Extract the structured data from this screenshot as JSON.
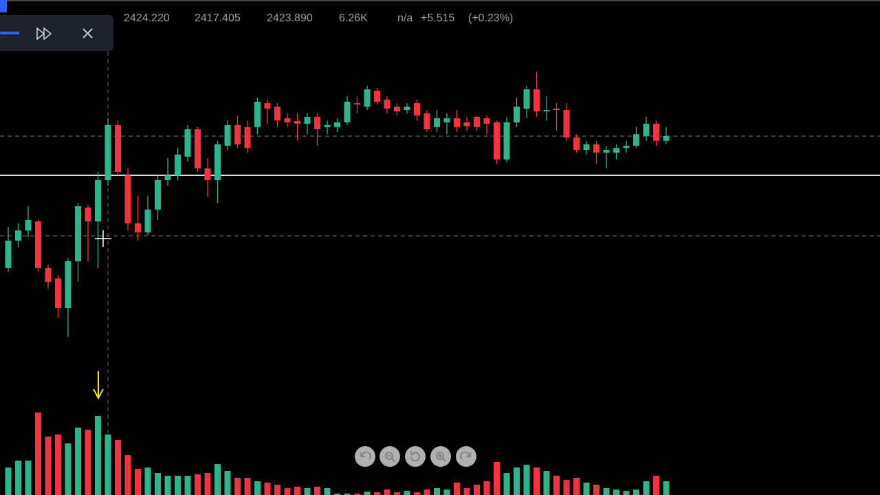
{
  "header": {
    "values": [
      "2424.220",
      "2417.405",
      "2423.890"
    ],
    "volume": "6.26K",
    "extra": "n/a",
    "change": "+5.515",
    "change_pct": "(+0.23%)"
  },
  "chart_data": {
    "type": "candlestick",
    "ylim": [
      2395,
      2445
    ],
    "volume_lim": [
      0,
      130
    ],
    "up_color": "#2bb58c",
    "down_color": "#f0333f",
    "open": [
      2408.75,
      2413.75,
      2415.6,
      2417.25,
      2408.75,
      2406.9,
      2401.5,
      2410,
      2419.75,
      2417.25,
      2424.75,
      2434.75,
      2425.6,
      2416.9,
      2415.25,
      2419.4,
      2424.75,
      2425.6,
      2429,
      2434,
      2426.9,
      2424.75,
      2431,
      2434.75,
      2434.4,
      2434.4,
      2438.75,
      2438.1,
      2436,
      2435.5,
      2435,
      2436.25,
      2434.4,
      2434.4,
      2435.25,
      2438.75,
      2438.1,
      2441,
      2439.4,
      2438.1,
      2437.5,
      2438.75,
      2436.9,
      2434.4,
      2435.25,
      2436,
      2435.25,
      2436.25,
      2436,
      2435.25,
      2428.5,
      2435.25,
      2437.75,
      2441.25,
      2437.25,
      2437.75,
      2437.5,
      2432.5,
      2430.25,
      2431.25,
      2429.75,
      2429.75,
      2430.6,
      2431,
      2432.75,
      2435,
      2431.9
    ],
    "high": [
      2416.25,
      2416.9,
      2420,
      2417.5,
      2409.4,
      2407.5,
      2410.6,
      2420.6,
      2420.25,
      2426.25,
      2436,
      2435.6,
      2426.9,
      2421.9,
      2421.9,
      2425.6,
      2428.75,
      2430.6,
      2434.75,
      2434.4,
      2428.75,
      2431.9,
      2435.6,
      2436.5,
      2435.6,
      2439.75,
      2439.4,
      2438.75,
      2436.9,
      2436.9,
      2436.9,
      2436.9,
      2435.6,
      2436,
      2440,
      2440,
      2441.9,
      2441.5,
      2440,
      2438.75,
      2438.75,
      2439.4,
      2437.5,
      2437.5,
      2436.9,
      2437.5,
      2436.25,
      2436.5,
      2436.5,
      2435.6,
      2436.25,
      2439.75,
      2441.9,
      2444.4,
      2440,
      2438.75,
      2438.75,
      2433.1,
      2431.9,
      2431.9,
      2431,
      2431.25,
      2431.9,
      2434.4,
      2436.25,
      2435.6,
      2434.4
    ],
    "low": [
      2408.1,
      2412.5,
      2414.4,
      2408.1,
      2405,
      2399.75,
      2396.25,
      2406.25,
      2410,
      2408.75,
      2423.75,
      2425.6,
      2415.6,
      2413.75,
      2414.75,
      2417.5,
      2423.75,
      2424.75,
      2428.1,
      2426.25,
      2421.75,
      2420.6,
      2430.25,
      2430.6,
      2429.75,
      2433.1,
      2435,
      2434.4,
      2434.4,
      2431.9,
      2433.1,
      2431,
      2433.1,
      2433.5,
      2434.75,
      2436.9,
      2437.5,
      2438.5,
      2436.9,
      2436.5,
      2436.9,
      2435.6,
      2433.5,
      2433.5,
      2433.1,
      2433.5,
      2433.75,
      2433.75,
      2433.1,
      2427.75,
      2428,
      2434.4,
      2436,
      2436.25,
      2435.6,
      2433.75,
      2431.9,
      2429.75,
      2429.4,
      2427.75,
      2426.9,
      2428.5,
      2429.75,
      2430.6,
      2431.9,
      2431,
      2431.25
    ],
    "close": [
      2413.75,
      2415.6,
      2417.5,
      2408.75,
      2406.25,
      2401.5,
      2410,
      2420,
      2417.25,
      2424.75,
      2434.75,
      2426.25,
      2416.9,
      2415.25,
      2419.4,
      2424.75,
      2425.6,
      2429.4,
      2434,
      2426.9,
      2424.75,
      2431.25,
      2434.75,
      2431.25,
      2430.6,
      2439,
      2437.75,
      2435.6,
      2435.25,
      2435,
      2436.25,
      2434,
      2434.75,
      2435.25,
      2439,
      2438.5,
      2441.25,
      2439,
      2437.75,
      2437.25,
      2438.1,
      2436.5,
      2434,
      2436,
      2436,
      2434.4,
      2434.6,
      2434.4,
      2435,
      2428.5,
      2435.25,
      2438.1,
      2441.25,
      2437.25,
      2437.5,
      2437.5,
      2432.5,
      2430.25,
      2431.25,
      2429.75,
      2430.25,
      2430.6,
      2431,
      2433.1,
      2435,
      2431.9,
      2432.75
    ],
    "volume": [
      40,
      50,
      50,
      120,
      85,
      88,
      75,
      98,
      95,
      115,
      88,
      80,
      58,
      38,
      40,
      32,
      28,
      28,
      28,
      30,
      32,
      45,
      35,
      25,
      25,
      20,
      18,
      15,
      10,
      12,
      10,
      12,
      10,
      2,
      2,
      2,
      5,
      4,
      8,
      4,
      6,
      4,
      8,
      10,
      8,
      18,
      10,
      15,
      20,
      48,
      32,
      40,
      44,
      40,
      35,
      28,
      22,
      25,
      18,
      15,
      10,
      8,
      6,
      8,
      20,
      28,
      20
    ]
  }
}
